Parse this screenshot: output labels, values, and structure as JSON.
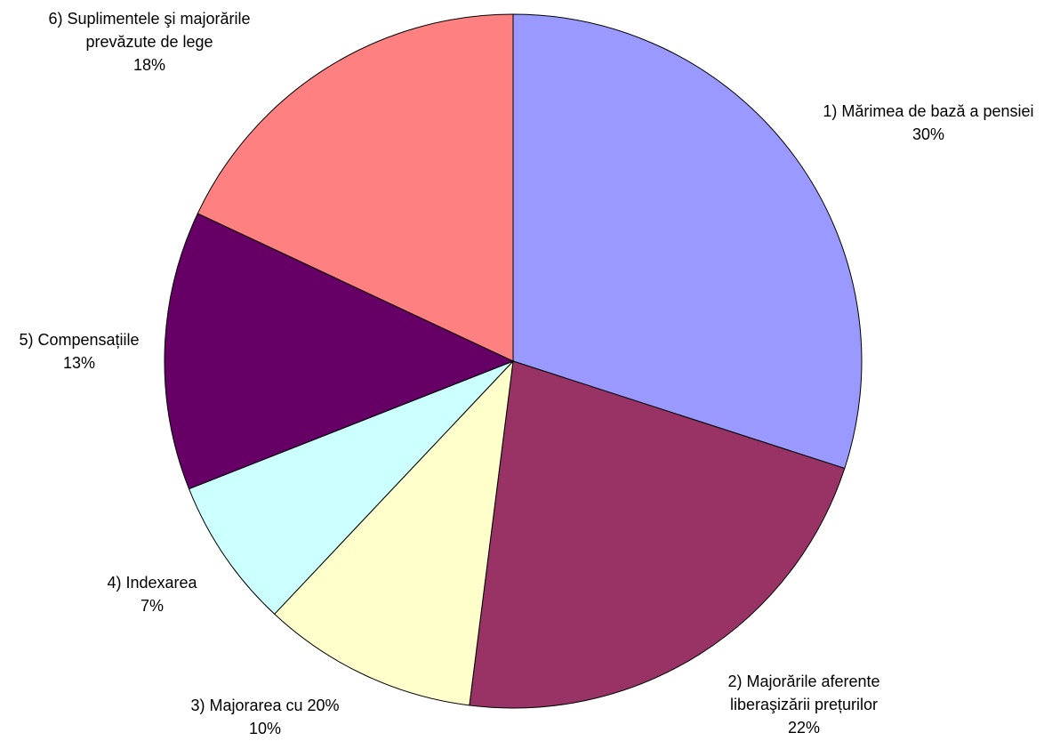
{
  "chart_data": {
    "type": "pie",
    "title": "",
    "categories": [
      "1) Mărimea de bază a pensiei",
      "2) Majorările aferente liberaşizării prețurilor",
      "3) Majorarea cu 20%",
      "4) Indexarea",
      "5) Compensațiile",
      "6) Suplimentele şi majorările prevăzute de lege"
    ],
    "values": [
      30,
      22,
      10,
      7,
      13,
      18
    ],
    "start_angle_deg": 0,
    "direction": "clockwise",
    "colors": [
      "#9999FF",
      "#993366",
      "#FFFFCC",
      "#CCFFFF",
      "#660066",
      "#FF8080"
    ],
    "labels": [
      {
        "lines": [
          "1) Mărimea de bază a pensiei"
        ],
        "percent": "30%"
      },
      {
        "lines": [
          "2) Majorările aferente",
          "liberaşizării prețurilor"
        ],
        "percent": "22%"
      },
      {
        "lines": [
          "3) Majorarea cu 20%"
        ],
        "percent": "10%"
      },
      {
        "lines": [
          "4) Indexarea"
        ],
        "percent": "7%"
      },
      {
        "lines": [
          "5) Compensațiile"
        ],
        "percent": "13%"
      },
      {
        "lines": [
          "6) Suplimentele şi majorările",
          "prevăzute de lege"
        ],
        "percent": "18%"
      }
    ],
    "legend": "none"
  }
}
